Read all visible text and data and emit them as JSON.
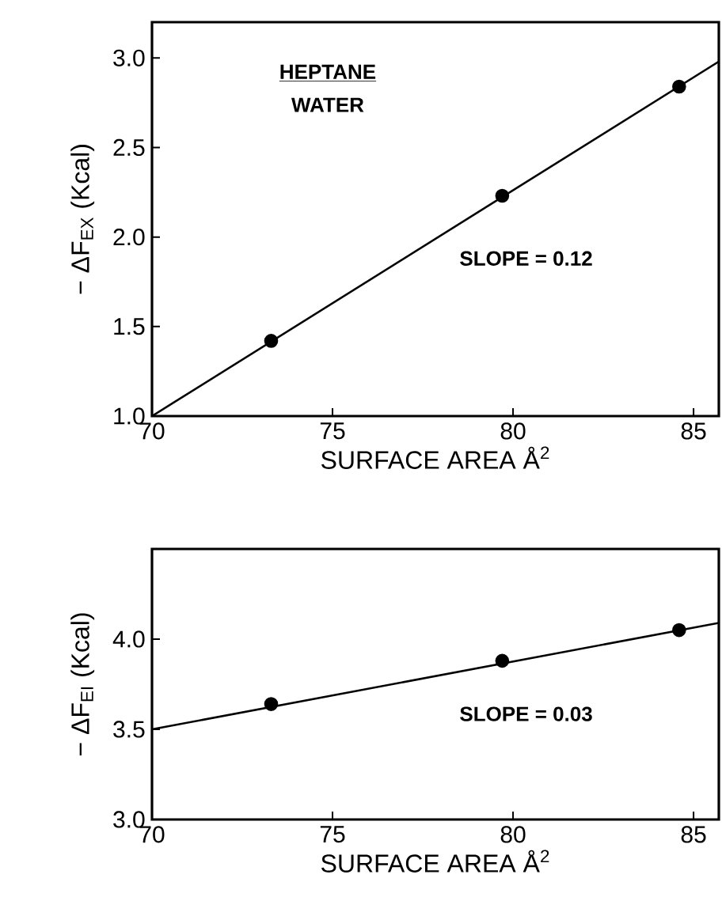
{
  "chart_data": [
    {
      "type": "scatter",
      "xlabel": "SURFACE AREA Å$^{2}$",
      "ylabel": "− ΔF$_{EX}$ (Kcal)",
      "annotations": [
        "HEPTANE",
        "WATER",
        "SLOPE = 0.12"
      ],
      "xlim": [
        70,
        85.7
      ],
      "ylim": [
        1.0,
        3.2
      ],
      "xticks": [
        70,
        75,
        80,
        85
      ],
      "yticks": [
        {
          "value": 1,
          "label": "1.0"
        },
        {
          "value": 1.5,
          "label": "1.5"
        },
        {
          "value": 2,
          "label": "2.0"
        },
        {
          "value": 2.5,
          "label": "2.5"
        },
        {
          "value": 3,
          "label": "3.0"
        }
      ],
      "series": [
        {
          "marker": "circle",
          "color": "#000000",
          "x": [
            73.3,
            79.7,
            84.6
          ],
          "values": [
            1.42,
            2.23,
            2.84
          ]
        },
        {
          "type": "line",
          "line_style": "solid",
          "color": "#000000",
          "x": [
            70,
            85.7
          ],
          "values": [
            1.0,
            2.98
          ]
        }
      ],
      "grid": false
    },
    {
      "type": "scatter",
      "xlabel": "SURFACE AREA Å$^{2}$",
      "ylabel": "− ΔF$_{EI}$ (Kcal)",
      "annotations": [
        "SLOPE = 0.03"
      ],
      "xlim": [
        70,
        85.7
      ],
      "ylim": [
        3.0,
        4.5
      ],
      "xticks": [
        70,
        75,
        80,
        85
      ],
      "yticks": [
        {
          "value": 3,
          "label": "3.0"
        },
        {
          "value": 3.5,
          "label": "3.5"
        },
        {
          "value": 4,
          "label": "4.0"
        }
      ],
      "series": [
        {
          "marker": "circle",
          "color": "#000000",
          "x": [
            73.3,
            79.7,
            84.6
          ],
          "values": [
            3.64,
            3.88,
            4.05
          ]
        },
        {
          "type": "line",
          "line_style": "solid",
          "color": "#000000",
          "x": [
            70,
            85.7
          ],
          "values": [
            3.5,
            4.09
          ]
        }
      ],
      "grid": false
    }
  ]
}
